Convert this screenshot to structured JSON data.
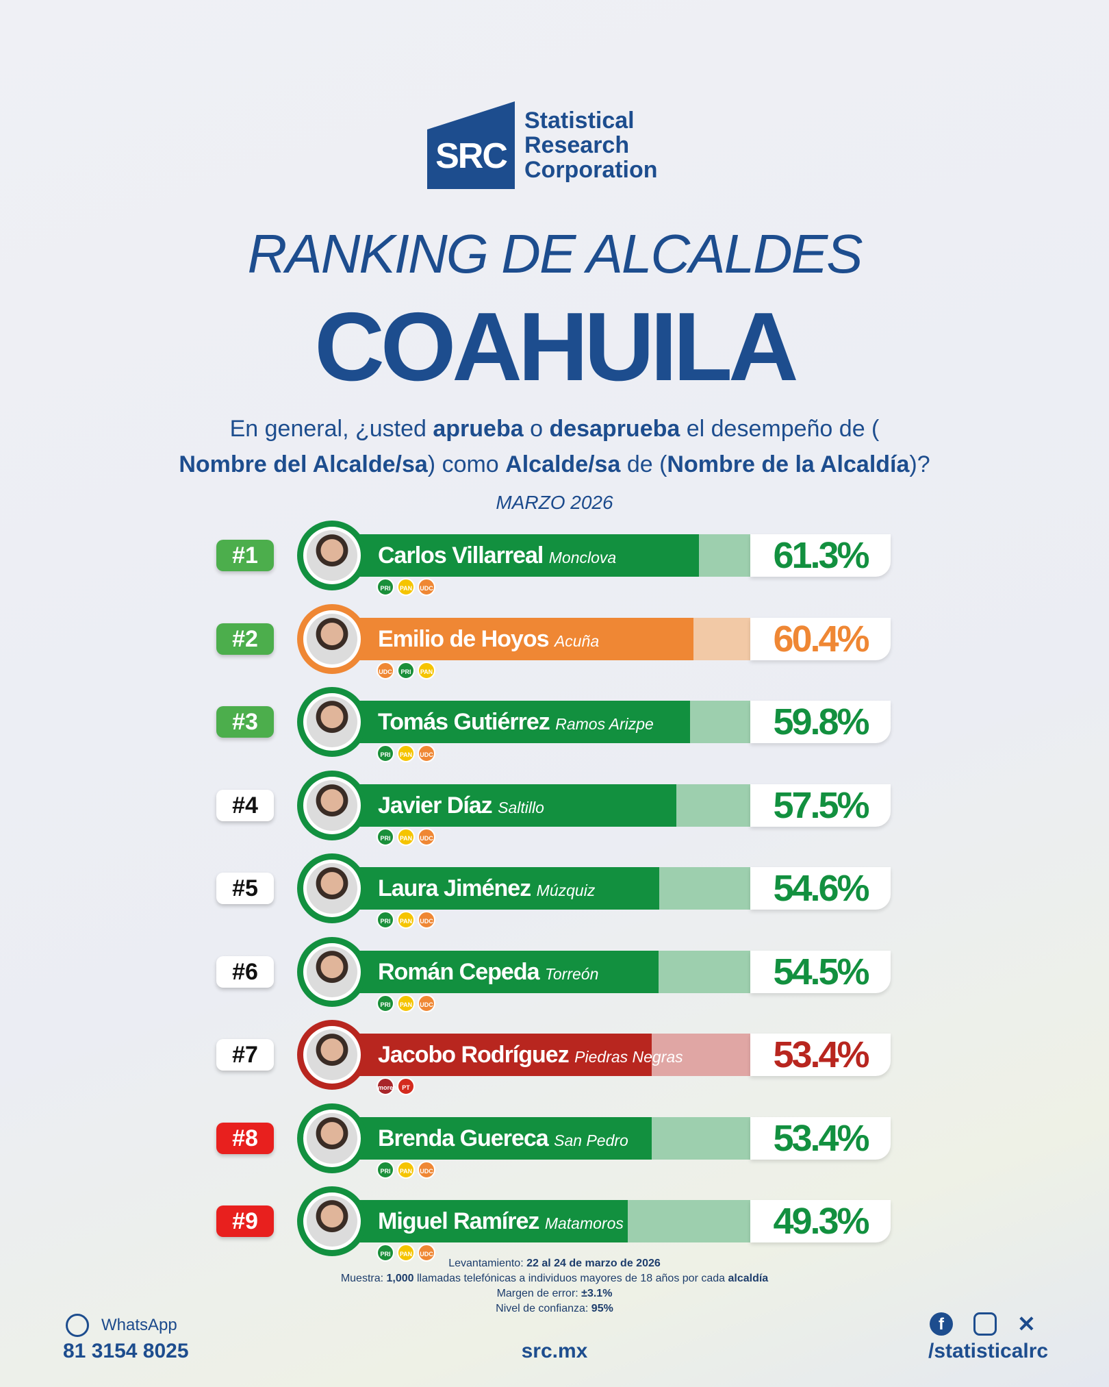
{
  "logo": {
    "abbr": "SRC",
    "name_lines": [
      "Statistical",
      "Research",
      "Corporation"
    ]
  },
  "header": {
    "subtitle": "RANKING DE ALCALDES",
    "title": "COAHUILA"
  },
  "question": {
    "p1": "En general, ¿usted ",
    "b1": "aprueba",
    "p2": " o ",
    "b2": "desaprueba",
    "p3": " el desempeño de (",
    "b3": "Nombre del Alcalde/sa",
    "p4": ") como ",
    "b4": "Alcalde/sa",
    "p5": " de (",
    "b5": "Nombre de la Alcaldía",
    "p6": ")?"
  },
  "date": "MARZO 2026",
  "colors": {
    "green": "#12903f",
    "green_light": "#9dcfae",
    "orange": "#ef8734",
    "orange_light": "#f2c9a6",
    "red": "#b8261f",
    "red_light": "#e0a6a4",
    "rank_green": "#4cae4c",
    "rank_red": "#e8201e",
    "navy": "#1d4d8e"
  },
  "chart_data": {
    "type": "bar",
    "categories": [
      "Carlos Villarreal",
      "Emilio de Hoyos",
      "Tomás Gutiérrez",
      "Javier Díaz",
      "Laura Jiménez",
      "Román Cepeda",
      "Jacobo Rodríguez",
      "Brenda Guereca",
      "Miguel Ramírez"
    ],
    "values": [
      61.3,
      60.4,
      59.8,
      57.5,
      54.6,
      54.5,
      53.4,
      53.4,
      49.3
    ]
  },
  "rows": [
    {
      "rank": "#1",
      "rank_color": "green",
      "name": "Carlos Villarreal",
      "city": "Monclova",
      "pct": "61.3%",
      "value": 61.3,
      "color": "green",
      "parties": [
        "PRI",
        "PAN",
        "UDC"
      ]
    },
    {
      "rank": "#2",
      "rank_color": "green",
      "name": "Emilio de Hoyos",
      "city": "Acuña",
      "pct": "60.4%",
      "value": 60.4,
      "color": "orange",
      "parties": [
        "UDC",
        "PRI",
        "PAN"
      ]
    },
    {
      "rank": "#3",
      "rank_color": "green",
      "name": "Tomás Gutiérrez",
      "city": "Ramos Arizpe",
      "pct": "59.8%",
      "value": 59.8,
      "color": "green",
      "parties": [
        "PRI",
        "PAN",
        "UDC"
      ]
    },
    {
      "rank": "#4",
      "rank_color": "white",
      "name": "Javier Díaz",
      "city": "Saltillo",
      "pct": "57.5%",
      "value": 57.5,
      "color": "green",
      "parties": [
        "PRI",
        "PAN",
        "UDC"
      ]
    },
    {
      "rank": "#5",
      "rank_color": "white",
      "name": "Laura Jiménez",
      "city": "Múzquiz",
      "pct": "54.6%",
      "value": 54.6,
      "color": "green",
      "parties": [
        "PRI",
        "PAN",
        "UDC"
      ]
    },
    {
      "rank": "#6",
      "rank_color": "white",
      "name": "Román Cepeda",
      "city": "Torreón",
      "pct": "54.5%",
      "value": 54.5,
      "color": "green",
      "parties": [
        "PRI",
        "PAN",
        "UDC"
      ]
    },
    {
      "rank": "#7",
      "rank_color": "white",
      "name": "Jacobo Rodríguez",
      "city": "Piedras Negras",
      "pct": "53.4%",
      "value": 53.4,
      "color": "red",
      "parties": [
        "morena",
        "PT"
      ]
    },
    {
      "rank": "#8",
      "rank_color": "red",
      "name": "Brenda Guereca",
      "city": "San Pedro",
      "pct": "53.4%",
      "value": 53.4,
      "color": "green",
      "parties": [
        "PRI",
        "PAN",
        "UDC"
      ]
    },
    {
      "rank": "#9",
      "rank_color": "red",
      "name": "Miguel Ramírez",
      "city": "Matamoros",
      "pct": "49.3%",
      "value": 49.3,
      "color": "green",
      "parties": [
        "PRI",
        "PAN",
        "UDC"
      ]
    }
  ],
  "notes": {
    "l1a": "Levantamiento: ",
    "l1b": "22 al 24 de marzo de 2026",
    "l2a": "Muestra: ",
    "l2b": "1,000",
    "l2c": " llamadas telefónicas a individuos mayores de 18 años por cada ",
    "l2d": "alcaldía",
    "l3a": "Margen de error: ",
    "l3b": "±3.1%",
    "l4a": "Nivel de confianza: ",
    "l4b": "95%"
  },
  "footer": {
    "whatsapp_label": "WhatsApp",
    "phone": "81 3154 8025",
    "site": "src.mx",
    "handle": "/statisticalrc",
    "icons": [
      "facebook-icon",
      "instagram-icon",
      "x-icon"
    ]
  }
}
